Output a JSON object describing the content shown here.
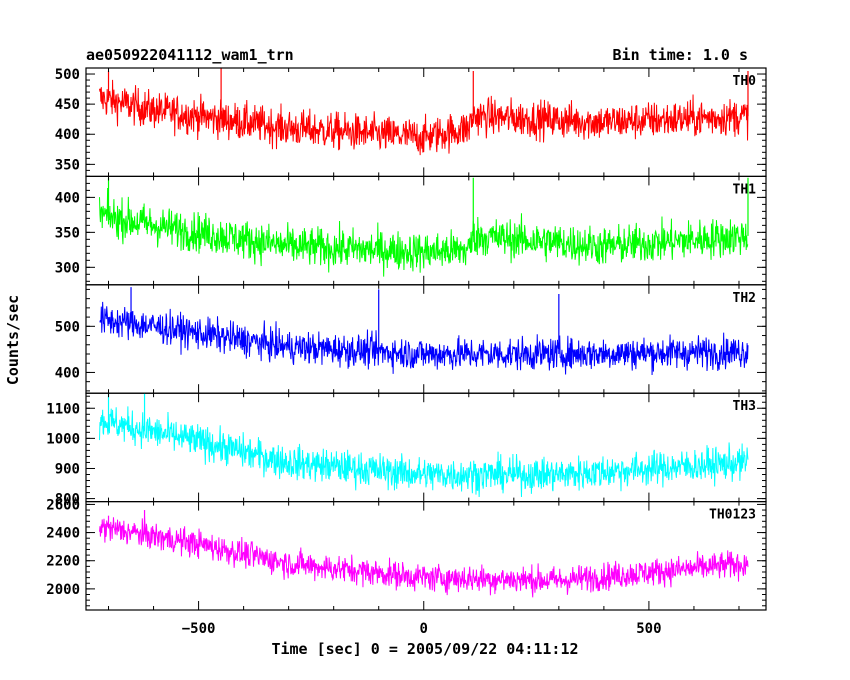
{
  "chart_data": {
    "type": "line",
    "title_left": "ae050922041112_wam1_trn",
    "title_right": "Bin time: 1.0 s",
    "xlabel": "Time [sec] 0 = 2005/09/22 04:11:12",
    "ylabel": "Counts/sec",
    "xlim": [
      -750,
      760
    ],
    "x_range": [
      -720,
      720
    ],
    "x_ticks": [
      -500,
      0,
      500
    ],
    "x_tick_labels": [
      "−500",
      "0",
      "500"
    ],
    "grid": false,
    "panels": [
      {
        "name": "TH0",
        "color": "#ff0000",
        "ylim": [
          330,
          510
        ],
        "y_ticks": [
          350,
          400,
          450,
          500
        ],
        "trend": [
          [
            -720,
            460
          ],
          [
            -600,
            440
          ],
          [
            -300,
            410
          ],
          [
            0,
            395
          ],
          [
            100,
            410
          ],
          [
            110,
            430
          ],
          [
            400,
            420
          ],
          [
            720,
            430
          ]
        ],
        "noise": 22,
        "spikes": [
          [
            -700,
            505
          ],
          [
            -450,
            510
          ],
          [
            110,
            505
          ],
          [
            720,
            505
          ]
        ]
      },
      {
        "name": "TH1",
        "color": "#00ff00",
        "ylim": [
          275,
          430
        ],
        "y_ticks": [
          300,
          350,
          400
        ],
        "trend": [
          [
            -720,
            375
          ],
          [
            -600,
            360
          ],
          [
            -300,
            330
          ],
          [
            0,
            322
          ],
          [
            100,
            325
          ],
          [
            110,
            345
          ],
          [
            400,
            330
          ],
          [
            720,
            345
          ]
        ],
        "noise": 20,
        "spikes": [
          [
            -700,
            428
          ],
          [
            110,
            428
          ],
          [
            720,
            428
          ]
        ]
      },
      {
        "name": "TH2",
        "color": "#0000ff",
        "ylim": [
          355,
          590
        ],
        "y_ticks": [
          400,
          500
        ],
        "trend": [
          [
            -720,
            515
          ],
          [
            -600,
            500
          ],
          [
            -300,
            455
          ],
          [
            0,
            440
          ],
          [
            300,
            440
          ],
          [
            720,
            445
          ]
        ],
        "noise": 25,
        "spikes": [
          [
            -650,
            585
          ],
          [
            -100,
            580
          ],
          [
            300,
            570
          ]
        ]
      },
      {
        "name": "TH3",
        "color": "#00ffff",
        "ylim": [
          790,
          1150
        ],
        "y_ticks": [
          800,
          900,
          1000,
          1100
        ],
        "trend": [
          [
            -720,
            1060
          ],
          [
            -500,
            990
          ],
          [
            -300,
            920
          ],
          [
            0,
            880
          ],
          [
            300,
            880
          ],
          [
            720,
            920
          ]
        ],
        "noise": 40,
        "spikes": [
          [
            -700,
            1150
          ],
          [
            -620,
            1150
          ]
        ]
      },
      {
        "name": "TH0123",
        "color": "#ff00ff",
        "ylim": [
          1850,
          2620
        ],
        "y_ticks": [
          2000,
          2200,
          2400,
          2600
        ],
        "trend": [
          [
            -720,
            2440
          ],
          [
            -500,
            2320
          ],
          [
            -300,
            2180
          ],
          [
            0,
            2080
          ],
          [
            300,
            2060
          ],
          [
            720,
            2180
          ]
        ],
        "noise": 70,
        "spikes": [
          [
            -700,
            2520
          ],
          [
            -620,
            2560
          ]
        ]
      }
    ]
  }
}
